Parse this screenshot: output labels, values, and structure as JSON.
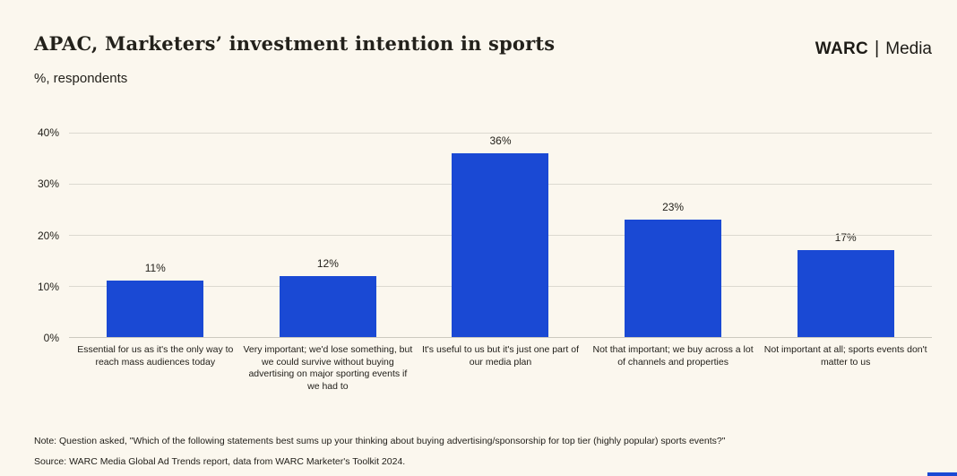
{
  "page": {
    "title": "APAC, Marketers’ investment intention in sports",
    "subtitle": "%, respondents",
    "logo": {
      "brand": "WARC",
      "separator": "|",
      "suffix": "Media"
    },
    "note": "Note: Question asked, \"Which of the following statements best sums up your thinking about buying advertising/sponsorship for top tier (highly popular) sports events?\"",
    "source": "Source: WARC Media Global Ad Trends report, data from WARC Marketer's Toolkit 2024."
  },
  "colors": {
    "background": "#fbf7ee",
    "bar": "#1a49d4",
    "gridline": "#dcd9d0",
    "axis_line": "#ccc9bf",
    "text": "#23211b",
    "accent": "#1a49d4"
  },
  "chart_data": {
    "type": "bar",
    "title": "APAC, Marketers’ investment intention in sports",
    "subtitle": "%, respondents",
    "categories": [
      "Essential for us as it's the only way to reach mass audiences today",
      "Very important; we'd lose something, but we could survive without buying advertising on major sporting events if we had to",
      "It's useful to us but it's just one part of our media plan",
      "Not that important; we buy across a lot of channels and properties",
      "Not important at all; sports events don't matter to us"
    ],
    "values": [
      11,
      12,
      36,
      23,
      17
    ],
    "value_labels": [
      "11%",
      "12%",
      "36%",
      "23%",
      "17%"
    ],
    "xlabel": "",
    "ylabel": "",
    "ylim": [
      0,
      40
    ],
    "yticks": [
      0,
      10,
      20,
      30,
      40
    ],
    "ytick_labels": [
      "0%",
      "10%",
      "20%",
      "30%",
      "40%"
    ],
    "grid": "horizontal",
    "legend": "none",
    "bar_color": "#1a49d4"
  }
}
